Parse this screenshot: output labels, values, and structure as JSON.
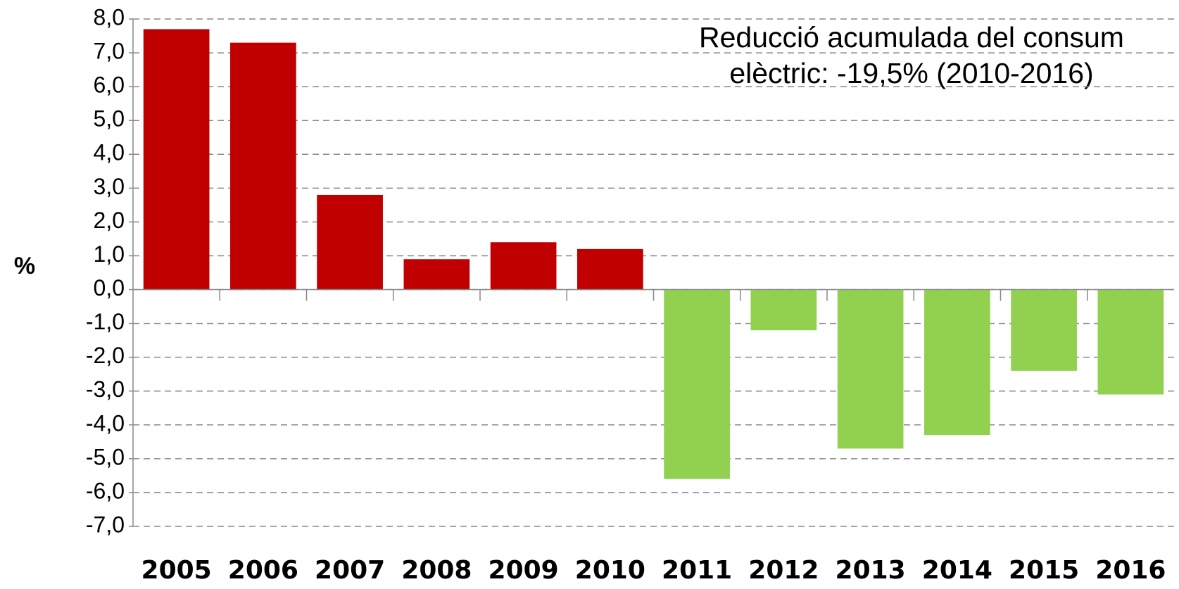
{
  "chart_data": {
    "type": "bar",
    "annotation": [
      "Reducció acumulada del consum",
      "elèctric: -19,5% (2010-2016)"
    ],
    "y_label": "%",
    "categories": [
      "2005",
      "2006",
      "2007",
      "2008",
      "2009",
      "2010",
      "2011",
      "2012",
      "2013",
      "2014",
      "2015",
      "2016"
    ],
    "values": [
      7.7,
      7.3,
      2.8,
      0.9,
      1.4,
      1.2,
      -5.6,
      -1.2,
      -4.7,
      -4.3,
      -2.4,
      -3.1
    ],
    "colors": [
      "#c00000",
      "#c00000",
      "#c00000",
      "#c00000",
      "#c00000",
      "#c00000",
      "#92d050",
      "#92d050",
      "#92d050",
      "#92d050",
      "#92d050",
      "#92d050"
    ],
    "ylim": [
      -7,
      8
    ],
    "yticks": [
      {
        "value": 8,
        "label": "8,0"
      },
      {
        "value": 7,
        "label": "7,0"
      },
      {
        "value": 6,
        "label": "6,0"
      },
      {
        "value": 5,
        "label": "5,0"
      },
      {
        "value": 4,
        "label": "4,0"
      },
      {
        "value": 3,
        "label": "3,0"
      },
      {
        "value": 2,
        "label": "2,0"
      },
      {
        "value": 1,
        "label": "1,0"
      },
      {
        "value": 0,
        "label": "0,0"
      },
      {
        "value": -1,
        "label": "-1,0"
      },
      {
        "value": -2,
        "label": "-2,0"
      },
      {
        "value": -3,
        "label": "-3,0"
      },
      {
        "value": -4,
        "label": "-4,0"
      },
      {
        "value": -5,
        "label": "-5,0"
      },
      {
        "value": -6,
        "label": "-6,0"
      },
      {
        "value": -7,
        "label": "-7,0"
      }
    ],
    "grid": true
  }
}
